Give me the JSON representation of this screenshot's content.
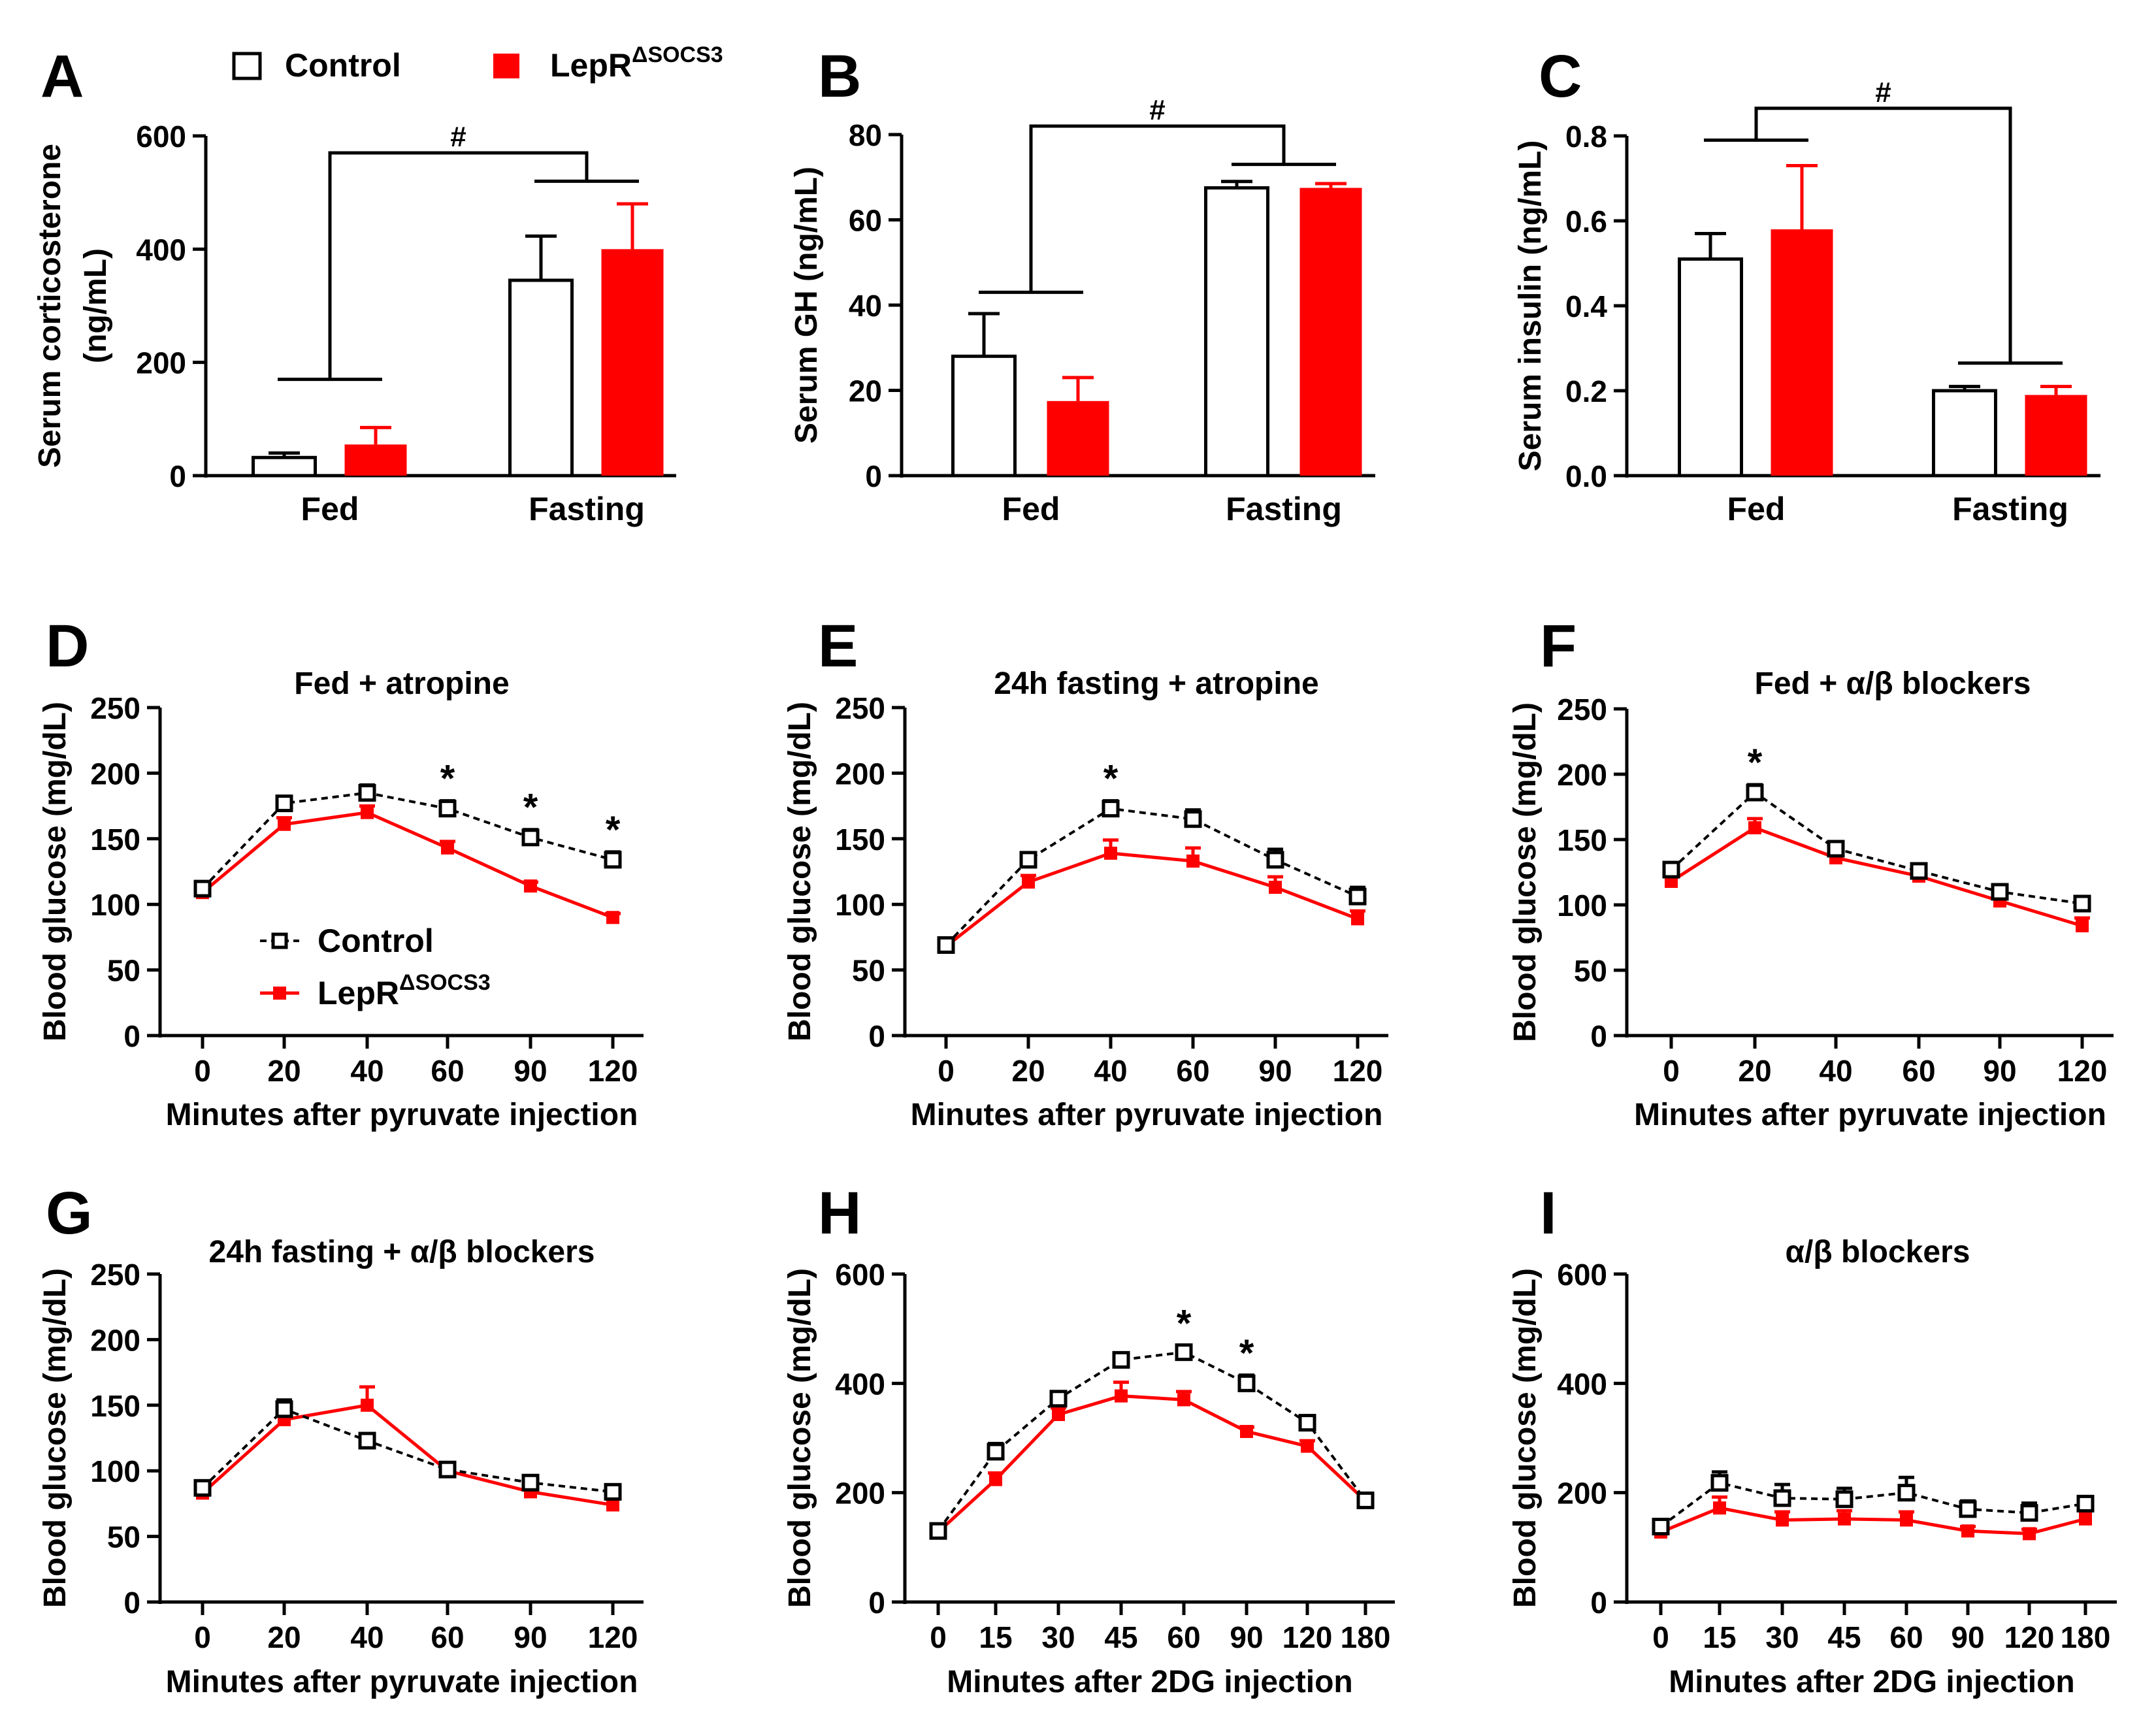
{
  "colors": {
    "control": "#000000",
    "lepr": "#ff0000"
  },
  "legend_top": {
    "control": "Control",
    "lepr": "LepR",
    "lepr_sup": "ΔSOCS3"
  },
  "legend_d": {
    "control": "Control",
    "lepr": "LepR",
    "lepr_sup": "ΔSOCS3"
  },
  "chart_data": [
    {
      "id": "A",
      "type": "bar",
      "panel_label": "A",
      "ylabel": [
        "Serum corticosterone",
        "(ng/mL)"
      ],
      "categories": [
        "Fed",
        "Fasting"
      ],
      "ylim": [
        0,
        600
      ],
      "yticks": [
        0,
        200,
        400,
        600
      ],
      "series": [
        {
          "name": "Control",
          "values": [
            32,
            345
          ],
          "err": [
            8,
            78
          ]
        },
        {
          "name": "LepRΔSOCS3",
          "values": [
            55,
            400
          ],
          "err": [
            30,
            80
          ]
        }
      ],
      "sig_marker": "#",
      "bracket_levels": [
        170,
        520
      ],
      "bracket_top": 570
    },
    {
      "id": "B",
      "type": "bar",
      "panel_label": "B",
      "ylabel": [
        "Serum GH (ng/mL)"
      ],
      "categories": [
        "Fed",
        "Fasting"
      ],
      "ylim": [
        0,
        80
      ],
      "yticks": [
        0,
        20,
        40,
        60,
        80
      ],
      "series": [
        {
          "name": "Control",
          "values": [
            28,
            67.5
          ],
          "err": [
            10,
            1.5
          ]
        },
        {
          "name": "LepRΔSOCS3",
          "values": [
            17.5,
            67.5
          ],
          "err": [
            5.5,
            1
          ]
        }
      ],
      "sig_marker": "#",
      "bracket_levels": [
        43,
        73
      ],
      "bracket_top": 82
    },
    {
      "id": "C",
      "type": "bar",
      "panel_label": "C",
      "ylabel": [
        "Serum insulin (ng/mL)"
      ],
      "categories": [
        "Fed",
        "Fasting"
      ],
      "ylim": [
        0,
        0.8
      ],
      "yticks": [
        0.0,
        0.2,
        0.4,
        0.6,
        0.8
      ],
      "tick_decimals": 1,
      "series": [
        {
          "name": "Control",
          "values": [
            0.51,
            0.2
          ],
          "err": [
            0.06,
            0.01
          ]
        },
        {
          "name": "LepRΔSOCS3",
          "values": [
            0.58,
            0.19
          ],
          "err": [
            0.15,
            0.02
          ]
        }
      ],
      "sig_marker": "#",
      "bracket_levels": [
        0.79,
        0.265
      ],
      "bracket_top": 0.865
    },
    {
      "id": "D",
      "type": "line",
      "panel_label": "D",
      "title": "Fed + atropine",
      "ylabel": "Blood glucose (mg/dL)",
      "xlabel": "Minutes after pyruvate injection",
      "x": [
        "0",
        "20",
        "40",
        "60",
        "90",
        "120"
      ],
      "ylim": [
        0,
        250
      ],
      "yticks": [
        0,
        50,
        100,
        150,
        200,
        250
      ],
      "series": [
        {
          "name": "Control",
          "values": [
            112,
            177,
            185,
            173,
            151,
            134
          ],
          "err": [
            4,
            5,
            6,
            6,
            6,
            6
          ]
        },
        {
          "name": "LepRΔSOCS3",
          "values": [
            109,
            161,
            170,
            143,
            114,
            90
          ],
          "err": [
            3,
            5,
            5,
            5,
            3,
            3
          ]
        }
      ],
      "stars": [
        {
          "x": "60",
          "label": "*"
        },
        {
          "x": "90",
          "label": "*"
        },
        {
          "x": "120",
          "label": "*"
        }
      ]
    },
    {
      "id": "E",
      "type": "line",
      "panel_label": "E",
      "title": "24h fasting + atropine",
      "ylabel": "Blood glucose (mg/dL)",
      "xlabel": "Minutes after pyruvate injection",
      "x": [
        "0",
        "20",
        "40",
        "60",
        "90",
        "120"
      ],
      "ylim": [
        0,
        250
      ],
      "yticks": [
        0,
        50,
        100,
        150,
        200,
        250
      ],
      "series": [
        {
          "name": "Control",
          "values": [
            69,
            134,
            173,
            165,
            134,
            106
          ],
          "err": [
            3,
            4,
            6,
            7,
            8,
            7
          ]
        },
        {
          "name": "LepRΔSOCS3",
          "values": [
            68,
            117,
            139,
            133,
            113,
            89
          ],
          "err": [
            3,
            5,
            10,
            10,
            8,
            6
          ]
        }
      ],
      "stars": [
        {
          "x": "40",
          "label": "*"
        }
      ]
    },
    {
      "id": "F",
      "type": "line",
      "panel_label": "F",
      "title": "Fed + α/β blockers",
      "ylabel": "Blood glucose (mg/dL)",
      "xlabel": "Minutes after pyruvate injection",
      "x": [
        "0",
        "20",
        "40",
        "60",
        "90",
        "120"
      ],
      "ylim": [
        0,
        250
      ],
      "yticks": [
        0,
        50,
        100,
        150,
        200,
        250
      ],
      "series": [
        {
          "name": "Control",
          "values": [
            127,
            186,
            143,
            126,
            110,
            101
          ],
          "err": [
            5,
            6,
            4,
            4,
            4,
            5
          ]
        },
        {
          "name": "LepRΔSOCS3",
          "values": [
            118,
            159,
            136,
            122,
            103,
            84
          ],
          "err": [
            5,
            7,
            5,
            4,
            5,
            6
          ]
        }
      ],
      "stars": [
        {
          "x": "20",
          "label": "*"
        }
      ]
    },
    {
      "id": "G",
      "type": "line",
      "panel_label": "G",
      "title": "24h fasting + α/β blockers",
      "ylabel": "Blood glucose (mg/dL)",
      "xlabel": "Minutes after pyruvate injection",
      "x": [
        "0",
        "20",
        "40",
        "60",
        "90",
        "120"
      ],
      "ylim": [
        0,
        250
      ],
      "yticks": [
        0,
        50,
        100,
        150,
        200,
        250
      ],
      "series": [
        {
          "name": "Control",
          "values": [
            87,
            147,
            123,
            101,
            91,
            84
          ],
          "err": [
            3,
            7,
            5,
            3,
            3,
            4
          ]
        },
        {
          "name": "LepRΔSOCS3",
          "values": [
            83,
            139,
            150,
            100,
            84,
            74
          ],
          "err": [
            3,
            6,
            14,
            4,
            4,
            5
          ]
        }
      ],
      "stars": []
    },
    {
      "id": "H",
      "type": "line",
      "panel_label": "H",
      "ylabel": "Blood glucose (mg/dL)",
      "xlabel": "Minutes after 2DG injection",
      "x": [
        "0",
        "15",
        "30",
        "45",
        "60",
        "90",
        "120",
        "180"
      ],
      "ylim": [
        0,
        600
      ],
      "yticks": [
        0,
        200,
        400,
        600
      ],
      "series": [
        {
          "name": "Control",
          "values": [
            130,
            275,
            372,
            443,
            457,
            400,
            328,
            186
          ],
          "err": [
            8,
            15,
            12,
            10,
            12,
            15,
            10,
            8
          ]
        },
        {
          "name": "LepRΔSOCS3",
          "values": [
            128,
            224,
            343,
            377,
            370,
            312,
            285,
            185
          ],
          "err": [
            8,
            12,
            12,
            25,
            15,
            8,
            10,
            8
          ]
        }
      ],
      "stars": [
        {
          "x": "60",
          "label": "*"
        },
        {
          "x": "90",
          "label": "*"
        }
      ]
    },
    {
      "id": "I",
      "type": "line",
      "panel_label": "I",
      "title": "α/β blockers",
      "ylabel": "Blood glucose (mg/dL)",
      "xlabel": "Minutes after 2DG injection",
      "x": [
        "0",
        "15",
        "30",
        "45",
        "60",
        "90",
        "120",
        "180"
      ],
      "ylim": [
        0,
        600
      ],
      "yticks": [
        0,
        200,
        400,
        600
      ],
      "series": [
        {
          "name": "Control",
          "values": [
            138,
            218,
            190,
            188,
            200,
            170,
            163,
            180
          ],
          "err": [
            8,
            20,
            25,
            20,
            28,
            15,
            18,
            10
          ]
        },
        {
          "name": "LepRΔSOCS3",
          "values": [
            128,
            172,
            150,
            152,
            150,
            130,
            125,
            152
          ],
          "err": [
            8,
            20,
            15,
            15,
            15,
            8,
            8,
            15
          ]
        }
      ],
      "stars": []
    }
  ]
}
